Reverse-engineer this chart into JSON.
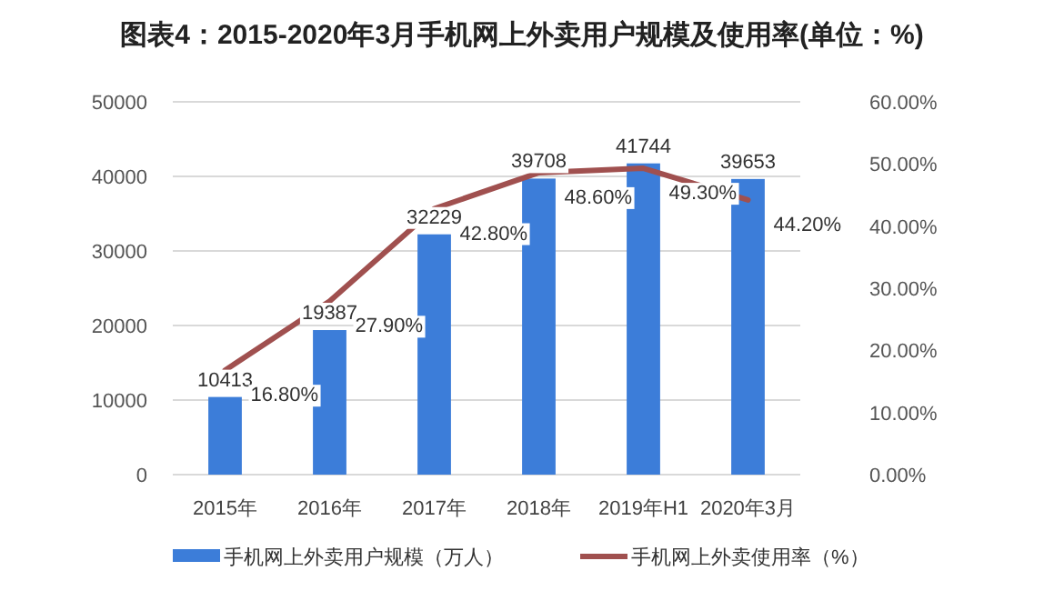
{
  "chart_data": {
    "type": "bar",
    "title": "图表4：2015-2020年3月手机网上外卖用户规模及使用率(单位：%)",
    "categories": [
      "2015年",
      "2016年",
      "2017年",
      "2018年",
      "2019年H1",
      "2020年3月"
    ],
    "series": [
      {
        "name": "手机网上外卖用户规模（万人）",
        "color": "#3c7dd9",
        "values": [
          10413,
          19387,
          32229,
          39708,
          41744,
          39653
        ]
      },
      {
        "name": "手机网上外卖使用率（%）",
        "type": "line",
        "axis": "y2",
        "color": "#a0504f",
        "values": [
          16.8,
          27.9,
          42.8,
          48.6,
          49.3,
          44.2
        ],
        "value_labels": [
          "16.80%",
          "27.90%",
          "42.80%",
          "48.60%",
          "49.30%",
          "44.20%"
        ]
      }
    ],
    "ylim": [
      0,
      50000
    ],
    "yticks": [
      0,
      10000,
      20000,
      30000,
      40000,
      50000
    ],
    "y2lim": [
      0,
      60
    ],
    "y2ticks": [
      {
        "value": 0,
        "label": "0.00%"
      },
      {
        "value": 10,
        "label": "10.00%"
      },
      {
        "value": 20,
        "label": "20.00%"
      },
      {
        "value": 30,
        "label": "30.00%"
      },
      {
        "value": 40,
        "label": "40.00%"
      },
      {
        "value": 50,
        "label": "50.00%"
      },
      {
        "value": 60,
        "label": "60.00%"
      }
    ],
    "data_labels": true,
    "grid": "y",
    "legend": "bottom",
    "line_style": "solid",
    "marker": "none"
  }
}
